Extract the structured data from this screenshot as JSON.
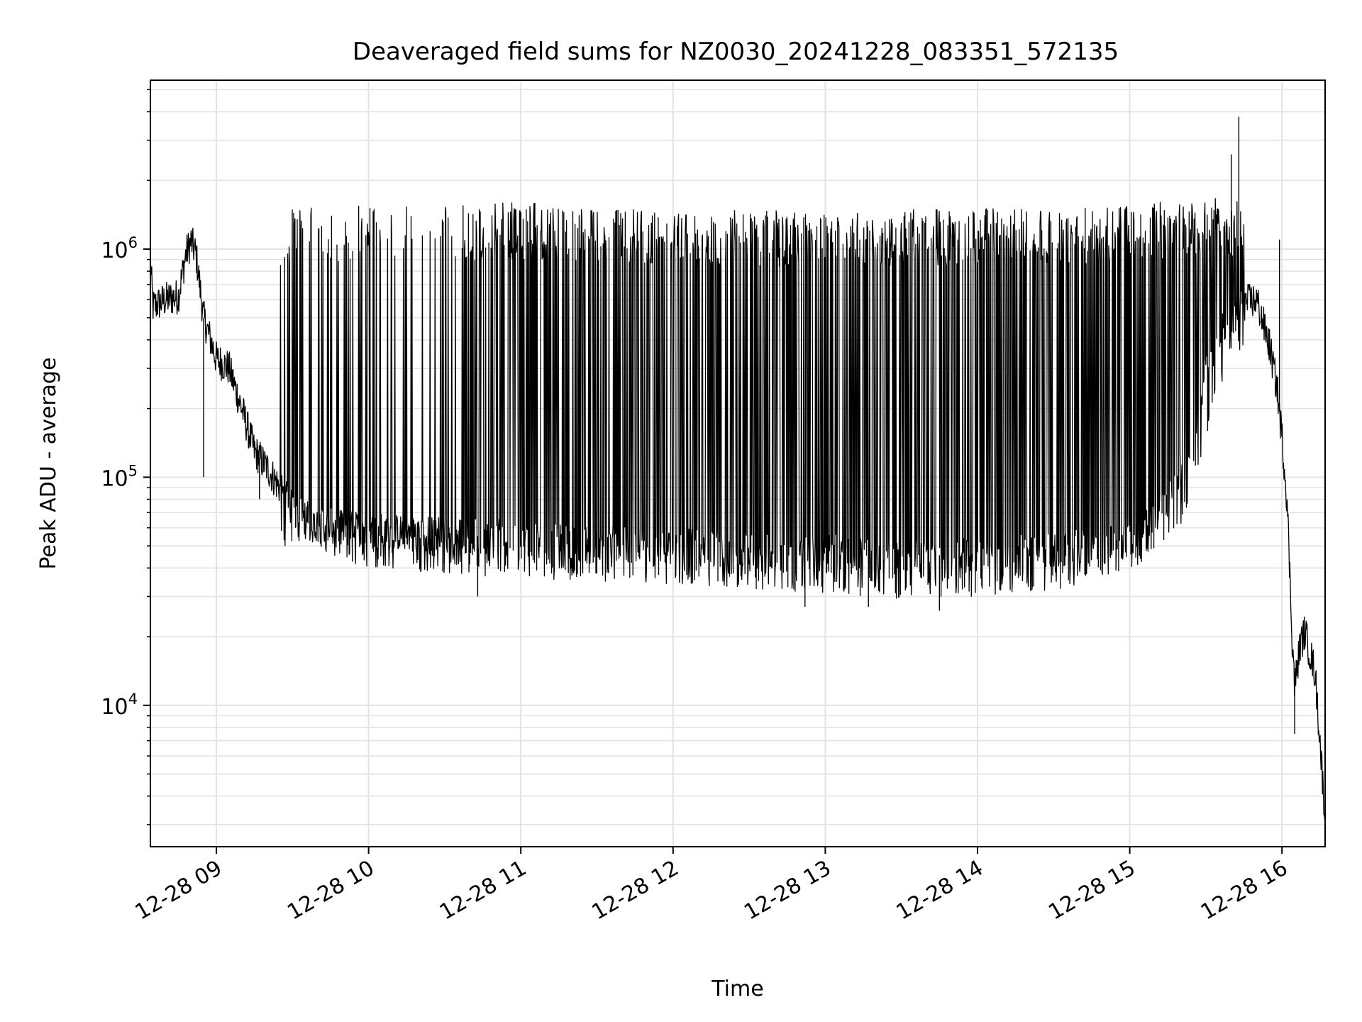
{
  "chart_data": {
    "type": "line",
    "title": "Deaveraged field sums for NZ0030_20241228_083351_572135",
    "xlabel": "Time",
    "ylabel": "Peak ADU - average",
    "yscale": "log",
    "grid": true,
    "legend": "none",
    "xlim": [
      "2024-12-28T08:34:00",
      "2024-12-28T16:17:00"
    ],
    "ylim": [
      2400,
      5500000
    ],
    "x_ticks": [
      {
        "value": "2024-12-28T09:00:00",
        "label": "12-28 09"
      },
      {
        "value": "2024-12-28T10:00:00",
        "label": "12-28 10"
      },
      {
        "value": "2024-12-28T11:00:00",
        "label": "12-28 11"
      },
      {
        "value": "2024-12-28T12:00:00",
        "label": "12-28 12"
      },
      {
        "value": "2024-12-28T13:00:00",
        "label": "12-28 13"
      },
      {
        "value": "2024-12-28T14:00:00",
        "label": "12-28 14"
      },
      {
        "value": "2024-12-28T15:00:00",
        "label": "12-28 15"
      },
      {
        "value": "2024-12-28T16:00:00",
        "label": "12-28 16"
      }
    ],
    "y_ticks": [
      {
        "value": 10000,
        "base": "10",
        "exp": "4"
      },
      {
        "value": 100000,
        "base": "10",
        "exp": "5"
      },
      {
        "value": 1000000,
        "base": "10",
        "exp": "6"
      }
    ],
    "series": [
      {
        "color": "#000000",
        "baseline": [
          [
            "2024-12-28T08:34:00",
            900000
          ],
          [
            "2024-12-28T08:35:00",
            560000
          ],
          [
            "2024-12-28T08:40:00",
            600000
          ],
          [
            "2024-12-28T08:45:00",
            620000
          ],
          [
            "2024-12-28T08:48:00",
            950000
          ],
          [
            "2024-12-28T08:50:00",
            1080000
          ],
          [
            "2024-12-28T08:52:00",
            950000
          ],
          [
            "2024-12-28T08:55:00",
            500000
          ],
          [
            "2024-12-28T09:00:00",
            330000
          ],
          [
            "2024-12-28T09:05:00",
            300000
          ],
          [
            "2024-12-28T09:10:00",
            200000
          ],
          [
            "2024-12-28T09:15:00",
            130000
          ],
          [
            "2024-12-28T09:20:00",
            110000
          ],
          [
            "2024-12-28T09:25:00",
            90000
          ],
          [
            "2024-12-28T09:30:00",
            72000
          ],
          [
            "2024-12-28T09:40:00",
            62000
          ],
          [
            "2024-12-28T09:50:00",
            60000
          ],
          [
            "2024-12-28T10:00:00",
            58000
          ],
          [
            "2024-12-28T10:30:00",
            56000
          ],
          [
            "2024-12-28T11:00:00",
            54000
          ],
          [
            "2024-12-28T12:00:00",
            50000
          ],
          [
            "2024-12-28T13:00:00",
            47000
          ],
          [
            "2024-12-28T13:30:00",
            45000
          ],
          [
            "2024-12-28T14:00:00",
            46000
          ],
          [
            "2024-12-28T14:30:00",
            48000
          ],
          [
            "2024-12-28T15:00:00",
            54000
          ],
          [
            "2024-12-28T15:15:00",
            80000
          ],
          [
            "2024-12-28T15:25:00",
            150000
          ],
          [
            "2024-12-28T15:30:00",
            300000
          ],
          [
            "2024-12-28T15:35:00",
            420000
          ],
          [
            "2024-12-28T15:40:00",
            500000
          ],
          [
            "2024-12-28T15:45:00",
            580000
          ],
          [
            "2024-12-28T15:50:00",
            600000
          ],
          [
            "2024-12-28T15:55:00",
            380000
          ],
          [
            "2024-12-28T15:58:00",
            250000
          ],
          [
            "2024-12-28T16:00:00",
            150000
          ],
          [
            "2024-12-28T16:02:00",
            80000
          ],
          [
            "2024-12-28T16:04:00",
            20000
          ],
          [
            "2024-12-28T16:05:00",
            12000
          ],
          [
            "2024-12-28T16:07:00",
            18000
          ],
          [
            "2024-12-28T16:09:00",
            21000
          ],
          [
            "2024-12-28T16:11:00",
            17000
          ],
          [
            "2024-12-28T16:13:00",
            14000
          ],
          [
            "2024-12-28T16:15:00",
            7000
          ],
          [
            "2024-12-28T16:17:00",
            3200
          ]
        ],
        "dense_region": {
          "x_range": [
            "2024-12-28T09:25:00",
            "2024-12-28T15:45:00"
          ],
          "low_envelope": [
            [
              "2024-12-28T09:30:00",
              50000
            ],
            [
              "2024-12-28T10:00:00",
              40000
            ],
            [
              "2024-12-28T11:00:00",
              36000
            ],
            [
              "2024-12-28T12:00:00",
              34000
            ],
            [
              "2024-12-28T13:00:00",
              31000
            ],
            [
              "2024-12-28T13:30:00",
              29000
            ],
            [
              "2024-12-28T14:00:00",
              30000
            ],
            [
              "2024-12-28T14:30:00",
              32000
            ],
            [
              "2024-12-28T15:00:00",
              38000
            ],
            [
              "2024-12-28T15:20:00",
              60000
            ],
            [
              "2024-12-28T15:40:00",
              350000
            ]
          ],
          "high_envelope": [
            [
              "2024-12-28T09:25:00",
              1500000
            ],
            [
              "2024-12-28T10:00:00",
              1550000
            ],
            [
              "2024-12-28T11:00:00",
              1600000
            ],
            [
              "2024-12-28T12:00:00",
              1500000
            ],
            [
              "2024-12-28T13:00:00",
              1480000
            ],
            [
              "2024-12-28T14:00:00",
              1500000
            ],
            [
              "2024-12-28T15:00:00",
              1550000
            ],
            [
              "2024-12-28T15:30:00",
              1700000
            ],
            [
              "2024-12-28T15:45:00",
              1600000
            ]
          ]
        },
        "notable_points": [
          [
            "2024-12-28T08:55:00",
            100000
          ],
          [
            "2024-12-28T09:17:00",
            80000
          ],
          [
            "2024-12-28T10:43:00",
            30000
          ],
          [
            "2024-12-28T12:52:00",
            27000
          ],
          [
            "2024-12-28T13:17:00",
            27000
          ],
          [
            "2024-12-28T13:45:00",
            26000
          ],
          [
            "2024-12-28T15:40:00",
            2600000
          ],
          [
            "2024-12-28T15:43:00",
            3800000
          ],
          [
            "2024-12-28T15:59:00",
            1100000
          ],
          [
            "2024-12-28T16:05:00",
            7500
          ],
          [
            "2024-12-28T16:17:00",
            3200
          ]
        ]
      }
    ]
  }
}
